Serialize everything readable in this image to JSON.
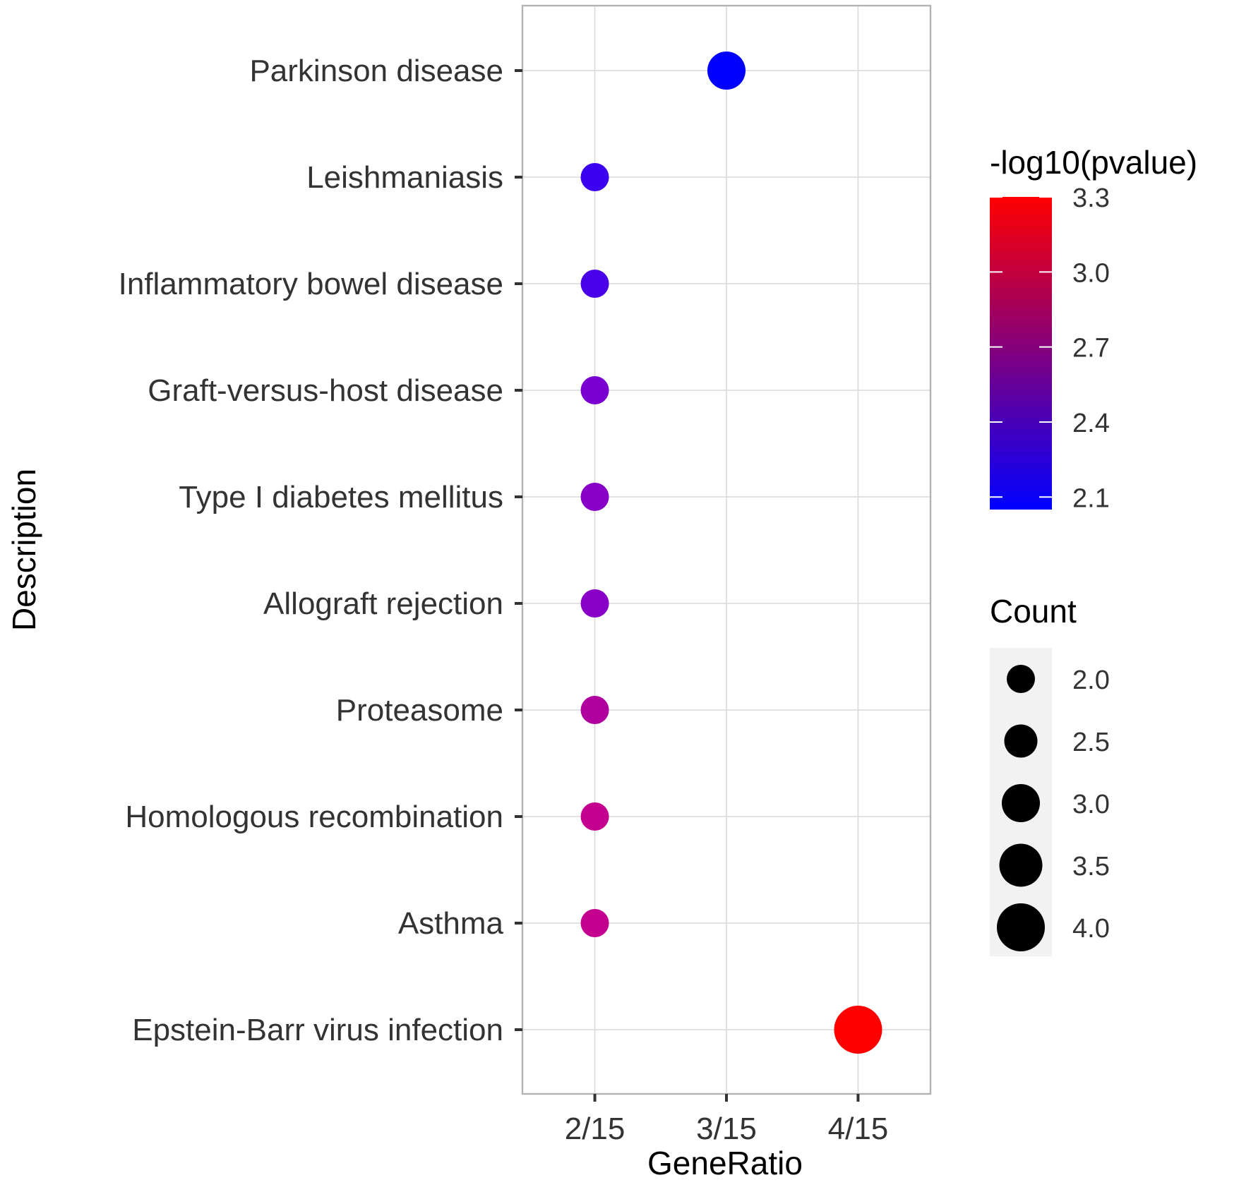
{
  "chart_data": {
    "type": "scatter",
    "subtype": "dot-plot",
    "xlabel": "GeneRatio",
    "ylabel": "Description",
    "x_tick_labels": [
      "2/15",
      "3/15",
      "4/15"
    ],
    "x_tick_values": [
      2,
      3,
      4
    ],
    "xlim": [
      1.45,
      4.55
    ],
    "grid": true,
    "points": [
      {
        "label": "Parkinson disease",
        "gene_ratio": "3/15",
        "x": 3,
        "count": 3,
        "neg_log10_pvalue": 2.05,
        "color": "#0000ff"
      },
      {
        "label": "Leishmaniasis",
        "gene_ratio": "2/15",
        "x": 2,
        "count": 2,
        "neg_log10_pvalue": 2.25,
        "color": "#3c00f0"
      },
      {
        "label": "Inflammatory bowel disease",
        "gene_ratio": "2/15",
        "x": 2,
        "count": 2,
        "neg_log10_pvalue": 2.28,
        "color": "#4800e8"
      },
      {
        "label": "Graft-versus-host disease",
        "gene_ratio": "2/15",
        "x": 2,
        "count": 2,
        "neg_log10_pvalue": 2.45,
        "color": "#7a00d2"
      },
      {
        "label": "Type I diabetes mellitus",
        "gene_ratio": "2/15",
        "x": 2,
        "count": 2,
        "neg_log10_pvalue": 2.5,
        "color": "#8800c8"
      },
      {
        "label": "Allograft rejection",
        "gene_ratio": "2/15",
        "x": 2,
        "count": 2,
        "neg_log10_pvalue": 2.5,
        "color": "#8800c8"
      },
      {
        "label": "Proteasome",
        "gene_ratio": "2/15",
        "x": 2,
        "count": 2,
        "neg_log10_pvalue": 2.7,
        "color": "#b0009e"
      },
      {
        "label": "Homologous recombination",
        "gene_ratio": "2/15",
        "x": 2,
        "count": 2,
        "neg_log10_pvalue": 2.8,
        "color": "#c4008e"
      },
      {
        "label": "Asthma",
        "gene_ratio": "2/15",
        "x": 2,
        "count": 2,
        "neg_log10_pvalue": 2.8,
        "color": "#c4008e"
      },
      {
        "label": "Epstein-Barr virus infection",
        "gene_ratio": "4/15",
        "x": 4,
        "count": 4,
        "neg_log10_pvalue": 3.3,
        "color": "#ff0000"
      }
    ],
    "legend_color": {
      "title": "-log10(pvalue)",
      "min": 2.05,
      "max": 3.3,
      "low_color": "#0000ff",
      "high_color": "#ff0000",
      "breaks": [
        "3.3",
        "3.0",
        "2.7",
        "2.4",
        "2.1"
      ],
      "break_values": [
        3.3,
        3.0,
        2.7,
        2.4,
        2.1
      ]
    },
    "legend_size": {
      "title": "Count",
      "breaks": [
        "2.0",
        "2.5",
        "3.0",
        "3.5",
        "4.0"
      ],
      "break_values": [
        2.0,
        2.5,
        3.0,
        3.5,
        4.0
      ],
      "range": [
        2,
        4
      ]
    }
  }
}
